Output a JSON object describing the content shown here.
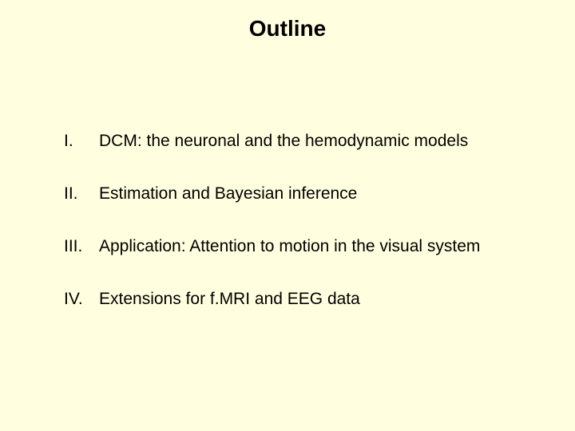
{
  "slide": {
    "title": "Outline",
    "background_color": "#ffffe0",
    "title_fontsize": 28,
    "body_fontsize": 21,
    "text_color": "#000000",
    "items": [
      {
        "numeral": "I.",
        "text": "DCM: the neuronal and the hemodynamic models"
      },
      {
        "numeral": "II.",
        "text": "Estimation and Bayesian inference"
      },
      {
        "numeral": "III.",
        "text": "Application: Attention to motion in the visual system"
      },
      {
        "numeral": "IV.",
        "text": "Extensions for f.MRI and EEG data"
      }
    ]
  }
}
